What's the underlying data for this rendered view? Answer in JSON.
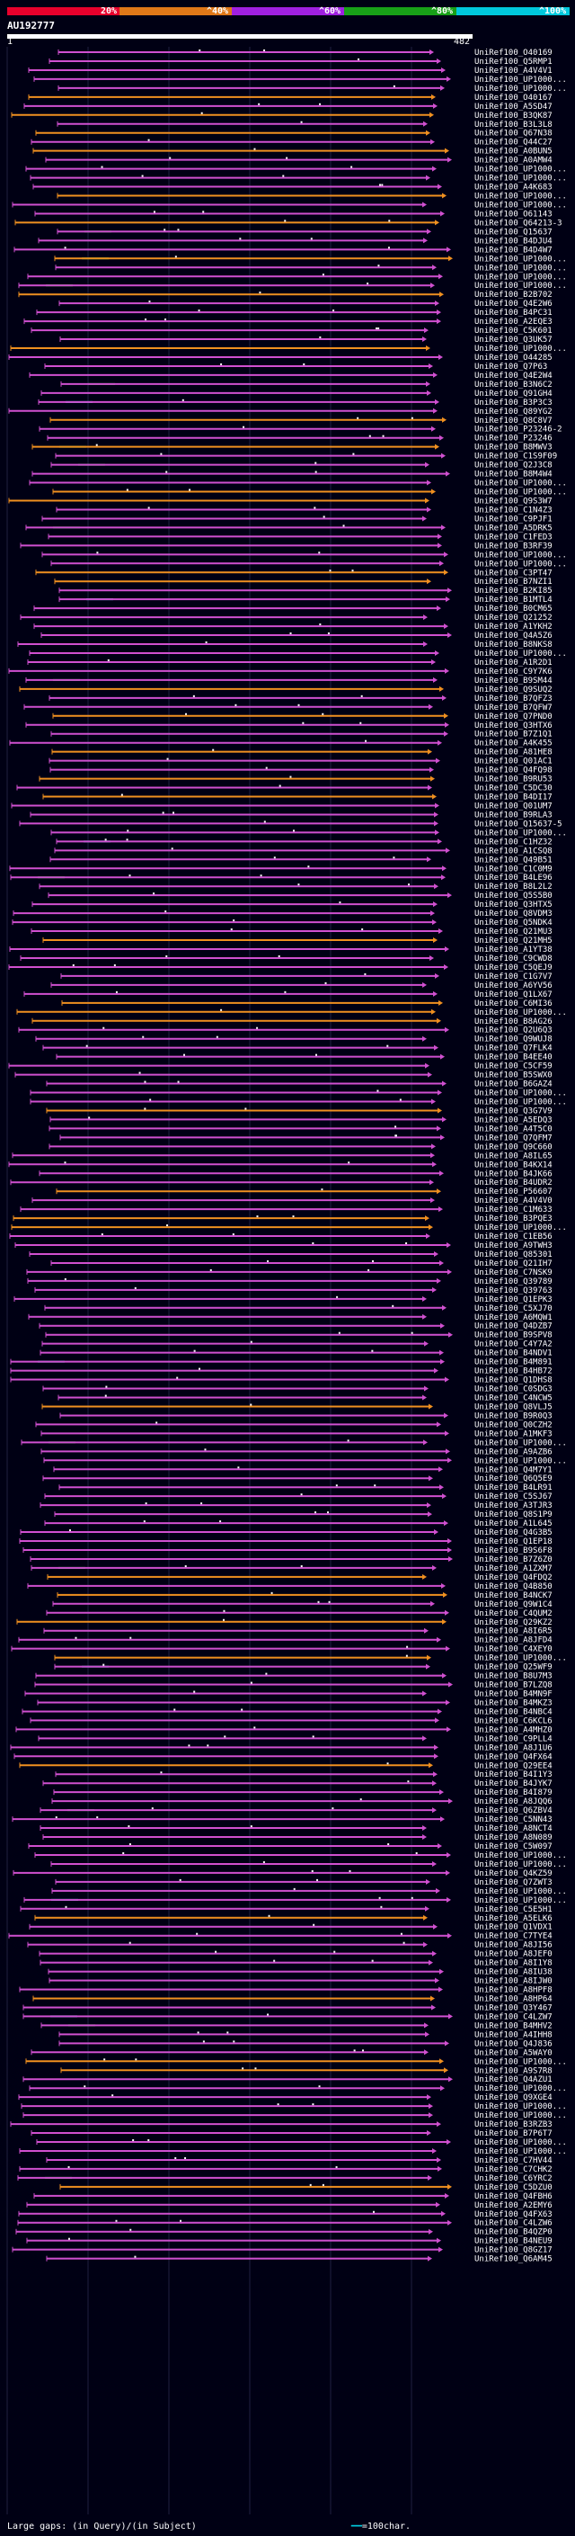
{
  "query": {
    "name": "AU192777",
    "start_label": "1",
    "end_label": "482"
  },
  "legend": {
    "items": [
      {
        "label": "20%",
        "color": "#e8002c"
      },
      {
        "label": "^40%",
        "color": "#e07818"
      },
      {
        "label": "^60%",
        "color": "#a020e0"
      },
      {
        "label": "^80%",
        "color": "#18a018"
      },
      {
        "label": "^100%",
        "color": "#00c8dc"
      }
    ]
  },
  "colors": {
    "background": "#000014",
    "magenta": "#d050d0",
    "orange": "#f09020",
    "green": "#30c030",
    "cyan": "#20d0e0",
    "dot": "#ffffff",
    "gridline": "#202040"
  },
  "hits": [
    "UniRef100_O40169",
    "UniRef100_Q5RMP1",
    "UniRef100_A4V4V1",
    "UniRef100_UP1000...",
    "UniRef100_UP1000...",
    "UniRef100_O40167",
    "UniRef100_A5SD47",
    "UniRef100_B3QK87",
    "UniRef100_B3L3L8",
    "UniRef100_Q67N38",
    "UniRef100_Q44C27",
    "UniRef100_A0BUN5",
    "UniRef100_A0AMW4",
    "UniRef100_UP1000...",
    "UniRef100_UP1000...",
    "UniRef100_A4K683",
    "UniRef100_UP1000...",
    "UniRef100_UP1000...",
    "UniRef100_O61143",
    "UniRef100_Q64213-3",
    "UniRef100_Q15637",
    "UniRef100_B4DJU4",
    "UniRef100_B4D4W7",
    "UniRef100_UP1000...",
    "UniRef100_UP1000...",
    "UniRef100_UP1000...",
    "UniRef100_UP1000...",
    "UniRef100_B2B702",
    "UniRef100_Q4E2W6",
    "UniRef100_B4PC31",
    "UniRef100_A2EQE3",
    "UniRef100_C5K601",
    "UniRef100_Q3UK57",
    "UniRef100_UP1000...",
    "UniRef100_O44285",
    "UniRef100_Q7P63",
    "UniRef100_Q4E2W4",
    "UniRef100_B3N6C2",
    "UniRef100_Q91GH4",
    "UniRef100_B3P3C3",
    "UniRef100_Q89YG2",
    "UniRef100_Q8C8V7",
    "UniRef100_P23246-2",
    "UniRef100_P23246",
    "UniRef100_B8MWV3",
    "UniRef100_C1S9F09",
    "UniRef100_Q2J3C8",
    "UniRef100_B8M4W4",
    "UniRef100_UP1000...",
    "UniRef100_UP1000...",
    "UniRef100_Q9S3W7",
    "UniRef100_C1N4Z3",
    "UniRef100_C9PJF1",
    "UniRef100_A5DRK5",
    "UniRef100_C1FED3",
    "UniRef100_B3RF39",
    "UniRef100_UP1000...",
    "UniRef100_UP1000...",
    "UniRef100_C3PT47",
    "UniRef100_B7NZI1",
    "UniRef100_B2KI85",
    "UniRef100_B1MTL4",
    "UniRef100_B0CM65",
    "UniRef100_Q21252",
    "UniRef100_A1YKH2",
    "UniRef100_Q4A5Z6",
    "UniRef100_B8NKS8",
    "UniRef100_UP1000...",
    "UniRef100_A1R2D1",
    "UniRef100_C9Y7K6",
    "UniRef100_B9SM44",
    "UniRef100_Q9SUQ2",
    "UniRef100_B7QFZ3",
    "UniRef100_B7QFW7",
    "UniRef100_Q7PND0",
    "UniRef100_Q3HTX6",
    "UniRef100_B7Z1Q1",
    "UniRef100_A4K455",
    "UniRef100_A81HE8",
    "UniRef100_Q01AC1",
    "UniRef100_Q4FQ98",
    "UniRef100_B9RU53",
    "UniRef100_C5DC30",
    "UniRef100_B4DI17",
    "UniRef100_Q01UM7",
    "UniRef100_B9RLA3",
    "UniRef100_Q15637-5",
    "UniRef100_UP1000...",
    "UniRef100_C1HZ32",
    "UniRef100_A1CSQ8",
    "UniRef100_Q49B51",
    "UniRef100_C1C0M9",
    "UniRef100_B4LE96",
    "UniRef100_B8L2L2",
    "UniRef100_Q5S5B0",
    "UniRef100_Q3HTX5",
    "UniRef100_Q8VDM3",
    "UniRef100_Q5NDK4",
    "UniRef100_Q21MU3",
    "UniRef100_Q21MH5",
    "UniRef100_A1YT38",
    "UniRef100_C9CWD8",
    "UniRef100_C5QEJ9",
    "UniRef100_C1G7V7",
    "UniRef100_A6YV56",
    "UniRef100_Q1LX67",
    "UniRef100_C6MI36",
    "UniRef100_UP1000...",
    "UniRef100_B8AG26",
    "UniRef100_Q2U6Q3",
    "UniRef100_Q9WUJ8",
    "UniRef100_Q7FLK4",
    "UniRef100_B4EE40",
    "UniRef100_C5CF59",
    "UniRef100_B5SWX0",
    "UniRef100_B6GAZ4",
    "UniRef100_UP1000...",
    "UniRef100_UP1000...",
    "UniRef100_Q3G7V9",
    "UniRef100_A5EDQ3",
    "UniRef100_A4T5C0",
    "UniRef100_Q7QFM7",
    "UniRef100_Q9C660",
    "UniRef100_A8IL65",
    "UniRef100_B4KX14",
    "UniRef100_B4JK66",
    "UniRef100_B4UDR2",
    "UniRef100_P56607",
    "UniRef100_A4V4V0",
    "UniRef100_C1M633",
    "UniRef100_B3PQE3",
    "UniRef100_UP1000...",
    "UniRef100_C1EB56",
    "UniRef100_A9TWH3",
    "UniRef100_Q85301",
    "UniRef100_Q21IH7",
    "UniRef100_C7NSK9",
    "UniRef100_Q39789",
    "UniRef100_Q39763",
    "UniRef100_Q1EPK3",
    "UniRef100_C5XJ70",
    "UniRef100_A6MQW1",
    "UniRef100_Q4DZB7",
    "UniRef100_B9SPV8",
    "UniRef100_C4Y7A2",
    "UniRef100_B4NDV1",
    "UniRef100_B4M891",
    "UniRef100_B4HB72",
    "UniRef100_Q1DHS8",
    "UniRef100_C0SDG3",
    "UniRef100_C4NCW5",
    "UniRef100_Q8VLJ5",
    "UniRef100_B9R0Q3",
    "UniRef100_Q0CZH2",
    "UniRef100_A1MKF3",
    "UniRef100_UP1000...",
    "UniRef100_A9AZB6",
    "UniRef100_UP1000...",
    "UniRef100_Q4M7Y1",
    "UniRef100_Q6Q5E9",
    "UniRef100_B4LR91",
    "UniRef100_C5SJ67",
    "UniRef100_A3TJR3",
    "UniRef100_Q8S1P9",
    "UniRef100_A1L645",
    "UniRef100_Q4G3B5",
    "UniRef100_Q1EP18",
    "UniRef100_B9S6F8",
    "UniRef100_B7Z6Z0",
    "UniRef100_A1ZXM7",
    "UniRef100_Q4FDQ2",
    "UniRef100_Q4B850",
    "UniRef100_B4NCK7",
    "UniRef100_Q9W1C4",
    "UniRef100_C4QUM2",
    "UniRef100_Q29KZ2",
    "UniRef100_A8I6R5",
    "UniRef100_A8JFD4",
    "UniRef100_C4XEY0",
    "UniRef100_UP1000...",
    "UniRef100_Q25WF9",
    "UniRef100_B8U7M3",
    "UniRef100_B7LZQ8",
    "UniRef100_B4MN9F",
    "UniRef100_B4MKZ3",
    "UniRef100_B4NBC4",
    "UniRef100_C6KCL6",
    "UniRef100_A4MHZ0",
    "UniRef100_C9PLL4",
    "UniRef100_A8J1U6",
    "UniRef100_Q4FX64",
    "UniRef100_Q29EE4",
    "UniRef100_B4I1Y3",
    "UniRef100_B4JYK7",
    "UniRef100_B4I879",
    "UniRef100_A8JQQ6",
    "UniRef100_Q6ZBV4",
    "UniRef100_C5NN43",
    "UniRef100_A8NCT4",
    "UniRef100_A8N089",
    "UniRef100_C5W097",
    "UniRef100_UP1000...",
    "UniRef100_UP1000...",
    "UniRef100_Q4KZ59",
    "UniRef100_Q7ZWT3",
    "UniRef100_UP1000...",
    "UniRef100_UP1000...",
    "UniRef100_C5E5H1",
    "UniRef100_A5ELK6",
    "UniRef100_Q1VDX1",
    "UniRef100_C7TYE4",
    "UniRef100_A8JI56",
    "UniRef100_A8JEF0",
    "UniRef100_A8I1Y8",
    "UniRef100_A8IU38",
    "UniRef100_A8IJW0",
    "UniRef100_A8HPF8",
    "UniRef100_A8HP64",
    "UniRef100_Q3Y467",
    "UniRef100_C4LZW7",
    "UniRef100_B4MHV2",
    "UniRef100_A4IHH8",
    "UniRef100_Q4J836",
    "UniRef100_A5WAY0",
    "UniRef100_UP1000...",
    "UniRef100_A9S7R8",
    "UniRef100_Q4AZU1",
    "UniRef100_UP1000...",
    "UniRef100_Q9XGE4",
    "UniRef100_UP1000...",
    "UniRef100_UP1000...",
    "UniRef100_B3RZB3",
    "UniRef100_B7P6T7",
    "UniRef100_UP1000...",
    "UniRef100_UP1000...",
    "UniRef100_C7HV44",
    "UniRef100_C7CHK2",
    "UniRef100_C6YRC2",
    "UniRef100_C5DZU0",
    "UniRef100_Q4FBH6",
    "UniRef100_A2EMY6",
    "UniRef100_Q4FX63",
    "UniRef100_C4LZW6",
    "UniRef100_B4QZP0",
    "UniRef100_B4NEU9",
    "UniRef100_Q8GZ17",
    "UniRef100_Q6AM45"
  ],
  "footer": {
    "prefix": "Large gaps:",
    "gap_query": "(in Query)",
    "separator": "/",
    "gap_subject": "(in Subject)",
    "scale_label": "=100char."
  }
}
